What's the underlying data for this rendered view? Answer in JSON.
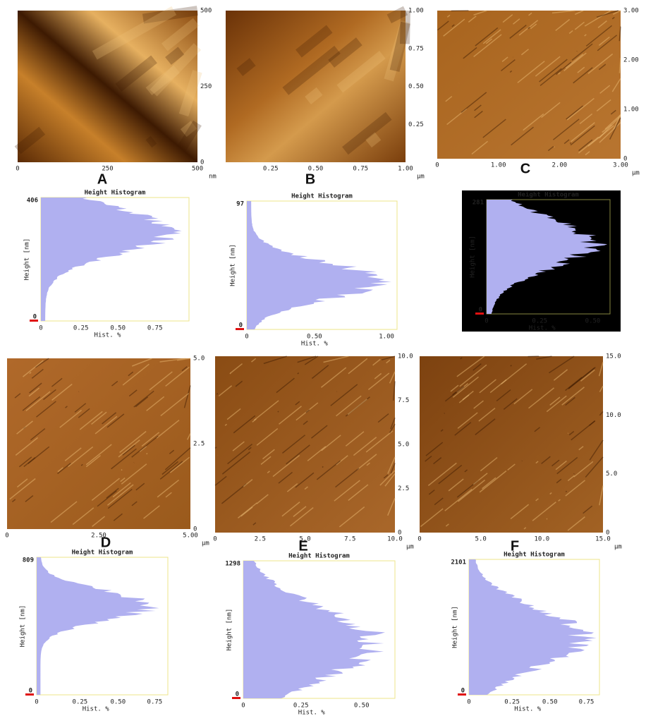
{
  "panels": [
    {
      "label": "A",
      "x_ticks": [
        "0",
        "250",
        "500"
      ],
      "y_ticks": [
        "0",
        "250",
        "500"
      ],
      "unit": "nm"
    },
    {
      "label": "B",
      "x_ticks": [
        "0.25",
        "0.50",
        "0.75",
        "1.00"
      ],
      "y_ticks": [
        "0.25",
        "0.50",
        "0.75",
        "1.00"
      ],
      "unit": "µm"
    },
    {
      "label": "C",
      "x_ticks": [
        "0",
        "1.00",
        "2.00",
        "3.00"
      ],
      "y_ticks": [
        "0",
        "1.00",
        "2.00",
        "3.00"
      ],
      "unit": "µm"
    },
    {
      "label": "D",
      "x_ticks": [
        "0",
        "2.50",
        "5.00"
      ],
      "y_ticks": [
        "0",
        "2.5",
        "5.0"
      ],
      "unit": "µm"
    },
    {
      "label": "E",
      "x_ticks": [
        "0",
        "2.5",
        "5.0",
        "7.5",
        "10.0"
      ],
      "y_ticks": [
        "0",
        "2.5",
        "5.0",
        "7.5",
        "10.0"
      ],
      "unit": "µm"
    },
    {
      "label": "F",
      "x_ticks": [
        "0",
        "5.0",
        "10.0",
        "15.0"
      ],
      "y_ticks": [
        "0",
        "5.0",
        "10.0",
        "15.0"
      ],
      "unit": "µm"
    }
  ],
  "histograms": [
    {
      "title": "Height Histogram",
      "y_max": 406,
      "y_min": 0,
      "y_label": "Height [nm]",
      "x_ticks": [
        "0",
        "0.25",
        "0.50",
        "0.75"
      ],
      "x_label": "Hist. %"
    },
    {
      "title": "Height Histogram",
      "y_max": 97,
      "y_min": 0,
      "y_label": "Height [nm]",
      "x_ticks": [
        "0",
        "0.50",
        "1.00"
      ],
      "x_label": "Hist. %"
    },
    {
      "title": "Height Histogram",
      "y_max": 281,
      "y_min": 0,
      "y_label": "Height [nm]",
      "x_ticks": [
        "0",
        "0.25",
        "0.50"
      ],
      "x_label": "Hist. %"
    },
    {
      "title": "Height Histogram",
      "y_max": 809,
      "y_min": 0,
      "y_label": "Height [nm]",
      "x_ticks": [
        "0",
        "0.25",
        "0.50",
        "0.75"
      ],
      "x_label": "Hist. %"
    },
    {
      "title": "Height Histogram",
      "y_max": 1298,
      "y_min": 0,
      "y_label": "Height [nm]",
      "x_ticks": [
        "0",
        "0.25",
        "0.50"
      ],
      "x_label": "Hist. %"
    },
    {
      "title": "Height Histogram",
      "y_max": 2101,
      "y_min": 0,
      "y_label": "Height [nm]",
      "x_ticks": [
        "0",
        "0.25",
        "0.50",
        "0.75"
      ],
      "x_label": "Hist. %"
    }
  ]
}
